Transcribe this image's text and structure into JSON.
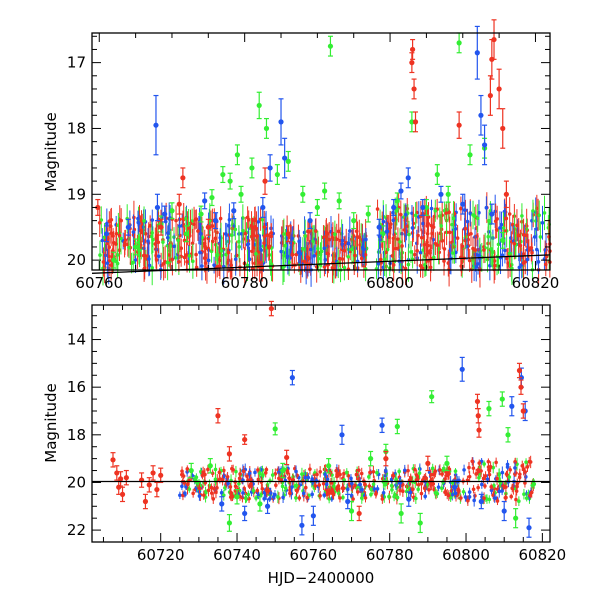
{
  "chart_data": [
    {
      "type": "scatter",
      "panel": "top",
      "xlabel": "",
      "ylabel": "Magnitude",
      "xlim": [
        60759,
        60822
      ],
      "ylim": [
        20.15,
        16.55
      ],
      "y_inverted": true,
      "grid": false,
      "xticks": [
        60760,
        60780,
        60800,
        60820
      ],
      "xtick_labels": [
        "60760",
        "60780",
        "60800",
        "60820"
      ],
      "yticks": [
        17,
        18,
        19,
        20
      ],
      "ytick_labels": [
        "17",
        "18",
        "19",
        "20"
      ],
      "reference_line": {
        "x": [
          60759,
          60822
        ],
        "y": [
          20.2,
          19.92
        ]
      },
      "series": [
        {
          "color": "#33ee33",
          "points": [
            {
              "x": 60762.0,
              "y": 20.0,
              "err": 0.12
            },
            {
              "x": 60765.0,
              "y": 19.8,
              "err": 0.12
            },
            {
              "x": 60768.5,
              "y": 19.45,
              "err": 0.12
            },
            {
              "x": 60770.0,
              "y": 19.25,
              "err": 0.12
            },
            {
              "x": 60772.0,
              "y": 19.6,
              "err": 0.12
            },
            {
              "x": 60774.0,
              "y": 19.3,
              "err": 0.12
            },
            {
              "x": 60775.5,
              "y": 19.05,
              "err": 0.12
            },
            {
              "x": 60777.0,
              "y": 18.7,
              "err": 0.12
            },
            {
              "x": 60778.0,
              "y": 18.8,
              "err": 0.12
            },
            {
              "x": 60779.0,
              "y": 18.4,
              "err": 0.15
            },
            {
              "x": 60779.5,
              "y": 19.0,
              "err": 0.12
            },
            {
              "x": 60781.0,
              "y": 18.6,
              "err": 0.15
            },
            {
              "x": 60782.0,
              "y": 17.65,
              "err": 0.2
            },
            {
              "x": 60783.0,
              "y": 18.0,
              "err": 0.15
            },
            {
              "x": 60784.5,
              "y": 18.7,
              "err": 0.15
            },
            {
              "x": 60786.0,
              "y": 18.5,
              "err": 0.15
            },
            {
              "x": 60788.0,
              "y": 19.0,
              "err": 0.12
            },
            {
              "x": 60790.0,
              "y": 19.2,
              "err": 0.12
            },
            {
              "x": 60791.0,
              "y": 18.95,
              "err": 0.12
            },
            {
              "x": 60791.8,
              "y": 16.75,
              "err": 0.15
            },
            {
              "x": 60793.0,
              "y": 19.1,
              "err": 0.12
            },
            {
              "x": 60795.0,
              "y": 19.4,
              "err": 0.12
            },
            {
              "x": 60797.0,
              "y": 19.3,
              "err": 0.12
            },
            {
              "x": 60799.0,
              "y": 19.6,
              "err": 0.12
            },
            {
              "x": 60801.0,
              "y": 19.1,
              "err": 0.12
            },
            {
              "x": 60803.0,
              "y": 17.9,
              "err": 0.15
            },
            {
              "x": 60805.0,
              "y": 19.2,
              "err": 0.12
            },
            {
              "x": 60806.5,
              "y": 18.7,
              "err": 0.15
            },
            {
              "x": 60808.0,
              "y": 19.0,
              "err": 0.12
            },
            {
              "x": 60809.5,
              "y": 16.7,
              "err": 0.15
            },
            {
              "x": 60811.0,
              "y": 18.4,
              "err": 0.15
            },
            {
              "x": 60813.0,
              "y": 18.3,
              "err": 0.15
            },
            {
              "x": 60815.5,
              "y": 19.7,
              "err": 0.12
            }
          ]
        },
        {
          "color": "#2255ee",
          "points": [
            {
              "x": 60761.0,
              "y": 19.6,
              "err": 0.12
            },
            {
              "x": 60764.0,
              "y": 19.5,
              "err": 0.12
            },
            {
              "x": 60767.8,
              "y": 17.95,
              "err": 0.45
            },
            {
              "x": 60768.0,
              "y": 19.2,
              "err": 0.2
            },
            {
              "x": 60769.0,
              "y": 19.3,
              "err": 0.12
            },
            {
              "x": 60774.5,
              "y": 19.1,
              "err": 0.12
            },
            {
              "x": 60776.0,
              "y": 19.4,
              "err": 0.12
            },
            {
              "x": 60778.5,
              "y": 19.25,
              "err": 0.12
            },
            {
              "x": 60782.5,
              "y": 19.2,
              "err": 0.15
            },
            {
              "x": 60783.5,
              "y": 18.6,
              "err": 0.2
            },
            {
              "x": 60785.0,
              "y": 17.9,
              "err": 0.35
            },
            {
              "x": 60785.5,
              "y": 18.45,
              "err": 0.3
            },
            {
              "x": 60789.0,
              "y": 19.4,
              "err": 0.12
            },
            {
              "x": 60798.5,
              "y": 19.5,
              "err": 0.12
            },
            {
              "x": 60800.5,
              "y": 19.2,
              "err": 0.12
            },
            {
              "x": 60801.5,
              "y": 18.95,
              "err": 0.12
            },
            {
              "x": 60802.5,
              "y": 18.75,
              "err": 0.15
            },
            {
              "x": 60804.5,
              "y": 19.2,
              "err": 0.12
            },
            {
              "x": 60807.0,
              "y": 19.0,
              "err": 0.12
            },
            {
              "x": 60810.0,
              "y": 19.15,
              "err": 0.15
            },
            {
              "x": 60812.0,
              "y": 16.85,
              "err": 0.4
            },
            {
              "x": 60812.5,
              "y": 17.8,
              "err": 0.3
            },
            {
              "x": 60813.0,
              "y": 18.25,
              "err": 0.3
            },
            {
              "x": 60814.0,
              "y": 19.3,
              "err": 0.15
            }
          ]
        },
        {
          "color": "#ee3322",
          "points": [
            {
              "x": 60759.8,
              "y": 19.2,
              "err": 0.12
            },
            {
              "x": 60768.5,
              "y": 19.5,
              "err": 0.12
            },
            {
              "x": 60771.0,
              "y": 19.15,
              "err": 0.15
            },
            {
              "x": 60771.5,
              "y": 18.75,
              "err": 0.15
            },
            {
              "x": 60775.0,
              "y": 19.5,
              "err": 0.12
            },
            {
              "x": 60782.8,
              "y": 18.8,
              "err": 0.2
            },
            {
              "x": 60786.0,
              "y": 19.6,
              "err": 0.12
            },
            {
              "x": 60803.0,
              "y": 17.0,
              "err": 0.15
            },
            {
              "x": 60803.1,
              "y": 16.8,
              "err": 0.15
            },
            {
              "x": 60803.3,
              "y": 17.4,
              "err": 0.15
            },
            {
              "x": 60803.5,
              "y": 17.9,
              "err": 0.15
            },
            {
              "x": 60809.5,
              "y": 17.95,
              "err": 0.2
            },
            {
              "x": 60813.8,
              "y": 17.5,
              "err": 0.3
            },
            {
              "x": 60814.0,
              "y": 16.95,
              "err": 0.3
            },
            {
              "x": 60814.3,
              "y": 16.65,
              "err": 0.3
            },
            {
              "x": 60815.0,
              "y": 17.4,
              "err": 0.3
            },
            {
              "x": 60815.5,
              "y": 18.0,
              "err": 0.3
            },
            {
              "x": 60816.0,
              "y": 19.0,
              "err": 0.2
            }
          ]
        }
      ]
    },
    {
      "type": "scatter",
      "panel": "bottom",
      "xlabel": "HJD−2400000",
      "ylabel": "Magnitude",
      "xlim": [
        60702,
        60822
      ],
      "ylim": [
        22.5,
        12.55
      ],
      "y_inverted": true,
      "grid": false,
      "xticks": [
        60720,
        60740,
        60760,
        60780,
        60800,
        60820
      ],
      "xtick_labels": [
        "60720",
        "60740",
        "60760",
        "60780",
        "60800",
        "60820"
      ],
      "yticks": [
        14,
        16,
        18,
        20,
        22
      ],
      "ytick_labels": [
        "14",
        "16",
        "18",
        "20",
        "22"
      ],
      "reference_line": {
        "x": [
          60702,
          60822
        ],
        "y": [
          19.96,
          19.96
        ]
      },
      "series": [
        {
          "color": "#33ee33",
          "points": [
            {
              "x": 60728.0,
              "y": 19.5,
              "err": 0.3
            },
            {
              "x": 60733.0,
              "y": 19.3,
              "err": 0.3
            },
            {
              "x": 60738.0,
              "y": 21.7,
              "err": 0.35
            },
            {
              "x": 60740.0,
              "y": 20.6,
              "err": 0.3
            },
            {
              "x": 60746.0,
              "y": 20.9,
              "err": 0.3
            },
            {
              "x": 60750.0,
              "y": 17.75,
              "err": 0.25
            },
            {
              "x": 60752.0,
              "y": 19.5,
              "err": 0.3
            },
            {
              "x": 60764.0,
              "y": 19.3,
              "err": 0.3
            },
            {
              "x": 60770.0,
              "y": 21.2,
              "err": 0.4
            },
            {
              "x": 60775.0,
              "y": 19.0,
              "err": 0.3
            },
            {
              "x": 60779.0,
              "y": 18.7,
              "err": 0.3
            },
            {
              "x": 60782.0,
              "y": 17.65,
              "err": 0.3
            },
            {
              "x": 60783.0,
              "y": 21.3,
              "err": 0.4
            },
            {
              "x": 60788.0,
              "y": 21.7,
              "err": 0.4
            },
            {
              "x": 60791.0,
              "y": 16.4,
              "err": 0.25
            },
            {
              "x": 60795.0,
              "y": 19.2,
              "err": 0.3
            },
            {
              "x": 60806.0,
              "y": 16.9,
              "err": 0.3
            },
            {
              "x": 60809.5,
              "y": 16.5,
              "err": 0.3
            },
            {
              "x": 60811.0,
              "y": 18.0,
              "err": 0.3
            },
            {
              "x": 60813.0,
              "y": 21.5,
              "err": 0.4
            }
          ]
        },
        {
          "color": "#2255ee",
          "points": [
            {
              "x": 60736.0,
              "y": 20.9,
              "err": 0.3
            },
            {
              "x": 60742.0,
              "y": 21.3,
              "err": 0.3
            },
            {
              "x": 60748.0,
              "y": 21.0,
              "err": 0.3
            },
            {
              "x": 60754.5,
              "y": 15.6,
              "err": 0.3
            },
            {
              "x": 60757.0,
              "y": 21.8,
              "err": 0.4
            },
            {
              "x": 60760.0,
              "y": 21.4,
              "err": 0.4
            },
            {
              "x": 60767.5,
              "y": 18.0,
              "err": 0.4
            },
            {
              "x": 60769.0,
              "y": 20.8,
              "err": 0.3
            },
            {
              "x": 60778.0,
              "y": 17.6,
              "err": 0.3
            },
            {
              "x": 60785.0,
              "y": 20.7,
              "err": 0.3
            },
            {
              "x": 60797.0,
              "y": 20.2,
              "err": 0.3
            },
            {
              "x": 60799.0,
              "y": 15.25,
              "err": 0.5
            },
            {
              "x": 60804.0,
              "y": 20.8,
              "err": 0.3
            },
            {
              "x": 60810.0,
              "y": 21.2,
              "err": 0.4
            },
            {
              "x": 60812.0,
              "y": 16.8,
              "err": 0.4
            },
            {
              "x": 60814.5,
              "y": 15.6,
              "err": 0.4
            },
            {
              "x": 60815.5,
              "y": 17.0,
              "err": 0.4
            },
            {
              "x": 60816.5,
              "y": 21.9,
              "err": 0.4
            }
          ]
        },
        {
          "color": "#ee3322",
          "points": [
            {
              "x": 60707.5,
              "y": 19.05,
              "err": 0.3
            },
            {
              "x": 60708.5,
              "y": 19.6,
              "err": 0.3
            },
            {
              "x": 60709.0,
              "y": 20.2,
              "err": 0.3
            },
            {
              "x": 60709.5,
              "y": 19.85,
              "err": 0.3
            },
            {
              "x": 60710.0,
              "y": 20.5,
              "err": 0.3
            },
            {
              "x": 60711.0,
              "y": 19.8,
              "err": 0.3
            },
            {
              "x": 60715.0,
              "y": 19.9,
              "err": 0.3
            },
            {
              "x": 60716.0,
              "y": 20.8,
              "err": 0.3
            },
            {
              "x": 60717.0,
              "y": 20.1,
              "err": 0.3
            },
            {
              "x": 60718.0,
              "y": 19.6,
              "err": 0.3
            },
            {
              "x": 60719.0,
              "y": 20.3,
              "err": 0.3
            },
            {
              "x": 60720.0,
              "y": 19.7,
              "err": 0.3
            },
            {
              "x": 60735.0,
              "y": 17.2,
              "err": 0.3
            },
            {
              "x": 60738.0,
              "y": 18.8,
              "err": 0.3
            },
            {
              "x": 60742.0,
              "y": 18.2,
              "err": 0.2
            },
            {
              "x": 60749.0,
              "y": 12.7,
              "err": 0.3
            },
            {
              "x": 60753.0,
              "y": 18.95,
              "err": 0.3
            },
            {
              "x": 60772.0,
              "y": 21.3,
              "err": 0.3
            },
            {
              "x": 60779.0,
              "y": 19.0,
              "err": 0.3
            },
            {
              "x": 60790.0,
              "y": 19.2,
              "err": 0.3
            },
            {
              "x": 60803.0,
              "y": 16.6,
              "err": 0.3
            },
            {
              "x": 60803.2,
              "y": 17.2,
              "err": 0.3
            },
            {
              "x": 60803.4,
              "y": 17.8,
              "err": 0.3
            },
            {
              "x": 60814.0,
              "y": 15.3,
              "err": 0.3
            },
            {
              "x": 60814.4,
              "y": 16.0,
              "err": 0.3
            },
            {
              "x": 60815.0,
              "y": 17.0,
              "err": 0.3
            }
          ]
        }
      ]
    }
  ]
}
